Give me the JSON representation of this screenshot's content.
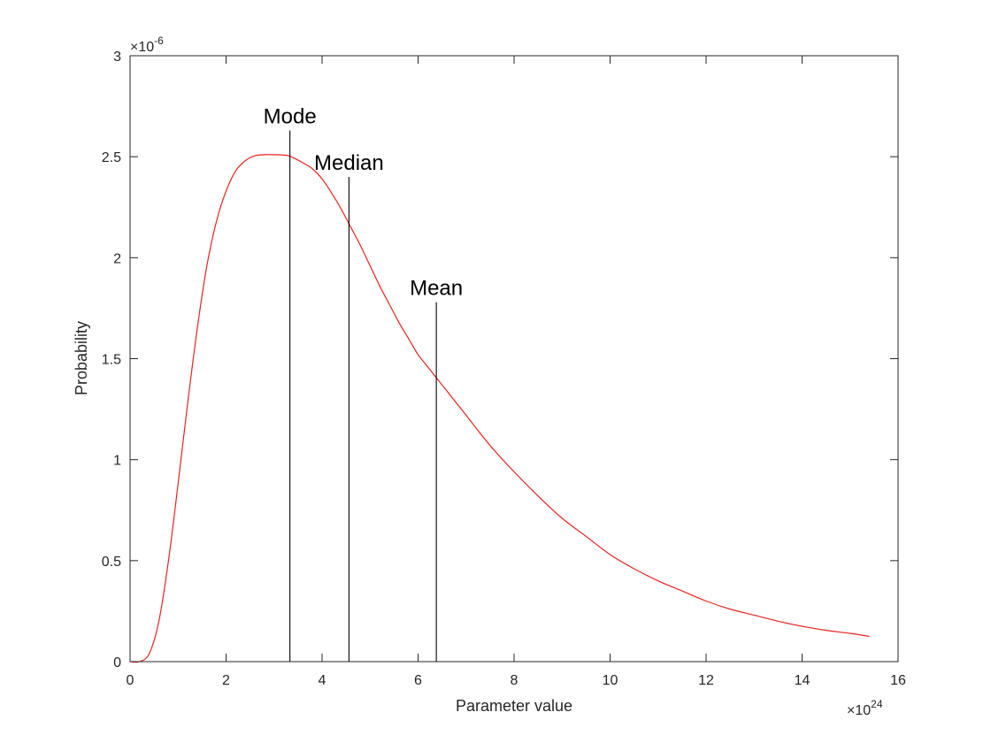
{
  "chart_data": {
    "type": "line",
    "title": "",
    "xlabel": "Parameter value",
    "ylabel": "Probability",
    "xlim": [
      0,
      16
    ],
    "ylim": [
      0,
      3
    ],
    "x_multiplier": {
      "times": "×10",
      "exponent": "24"
    },
    "y_multiplier": {
      "times": "×10",
      "exponent": "-6"
    },
    "x_ticks": [
      0,
      2,
      4,
      6,
      8,
      10,
      12,
      14,
      16
    ],
    "y_ticks": [
      0,
      0.5,
      1,
      1.5,
      2,
      2.5,
      3
    ],
    "x_tick_labels": [
      "0",
      "2",
      "4",
      "6",
      "8",
      "10",
      "12",
      "14",
      "16"
    ],
    "y_tick_labels": [
      "0",
      "0.5",
      "1",
      "1.5",
      "2",
      "2.5",
      "3"
    ],
    "grid": false,
    "series": [
      {
        "color": "#e8231f",
        "points": [
          [
            0.0,
            0.0
          ],
          [
            0.2,
            0.0
          ],
          [
            0.4,
            0.04
          ],
          [
            0.6,
            0.2
          ],
          [
            0.8,
            0.5
          ],
          [
            1.0,
            0.88
          ],
          [
            1.2,
            1.28
          ],
          [
            1.4,
            1.65
          ],
          [
            1.6,
            1.96
          ],
          [
            1.8,
            2.18
          ],
          [
            2.0,
            2.33
          ],
          [
            2.2,
            2.43
          ],
          [
            2.4,
            2.48
          ],
          [
            2.6,
            2.505
          ],
          [
            2.8,
            2.51
          ],
          [
            3.0,
            2.51
          ],
          [
            3.2,
            2.508
          ],
          [
            3.3,
            2.505
          ],
          [
            3.4,
            2.495
          ],
          [
            3.6,
            2.47
          ],
          [
            3.8,
            2.44
          ],
          [
            4.0,
            2.39
          ],
          [
            4.2,
            2.32
          ],
          [
            4.4,
            2.24
          ],
          [
            4.6,
            2.15
          ],
          [
            4.8,
            2.06
          ],
          [
            5.0,
            1.96
          ],
          [
            5.2,
            1.86
          ],
          [
            5.4,
            1.77
          ],
          [
            5.6,
            1.68
          ],
          [
            5.8,
            1.6
          ],
          [
            6.0,
            1.52
          ],
          [
            6.2,
            1.46
          ],
          [
            6.4,
            1.4
          ],
          [
            6.6,
            1.34
          ],
          [
            6.8,
            1.28
          ],
          [
            7.0,
            1.22
          ],
          [
            7.5,
            1.07
          ],
          [
            8.0,
            0.94
          ],
          [
            8.5,
            0.82
          ],
          [
            9.0,
            0.71
          ],
          [
            9.5,
            0.62
          ],
          [
            10.0,
            0.53
          ],
          [
            10.5,
            0.46
          ],
          [
            11.0,
            0.4
          ],
          [
            11.5,
            0.35
          ],
          [
            12.0,
            0.3
          ],
          [
            12.5,
            0.26
          ],
          [
            13.0,
            0.23
          ],
          [
            13.5,
            0.2
          ],
          [
            14.0,
            0.175
          ],
          [
            14.5,
            0.155
          ],
          [
            15.0,
            0.14
          ],
          [
            15.4,
            0.125
          ]
        ]
      }
    ],
    "annotations": [
      {
        "label": "Mode",
        "x": 3.33,
        "y_top": 2.63
      },
      {
        "label": "Median",
        "x": 4.56,
        "y_top": 2.4
      },
      {
        "label": "Mean",
        "x": 6.38,
        "y_top": 1.78
      }
    ]
  }
}
